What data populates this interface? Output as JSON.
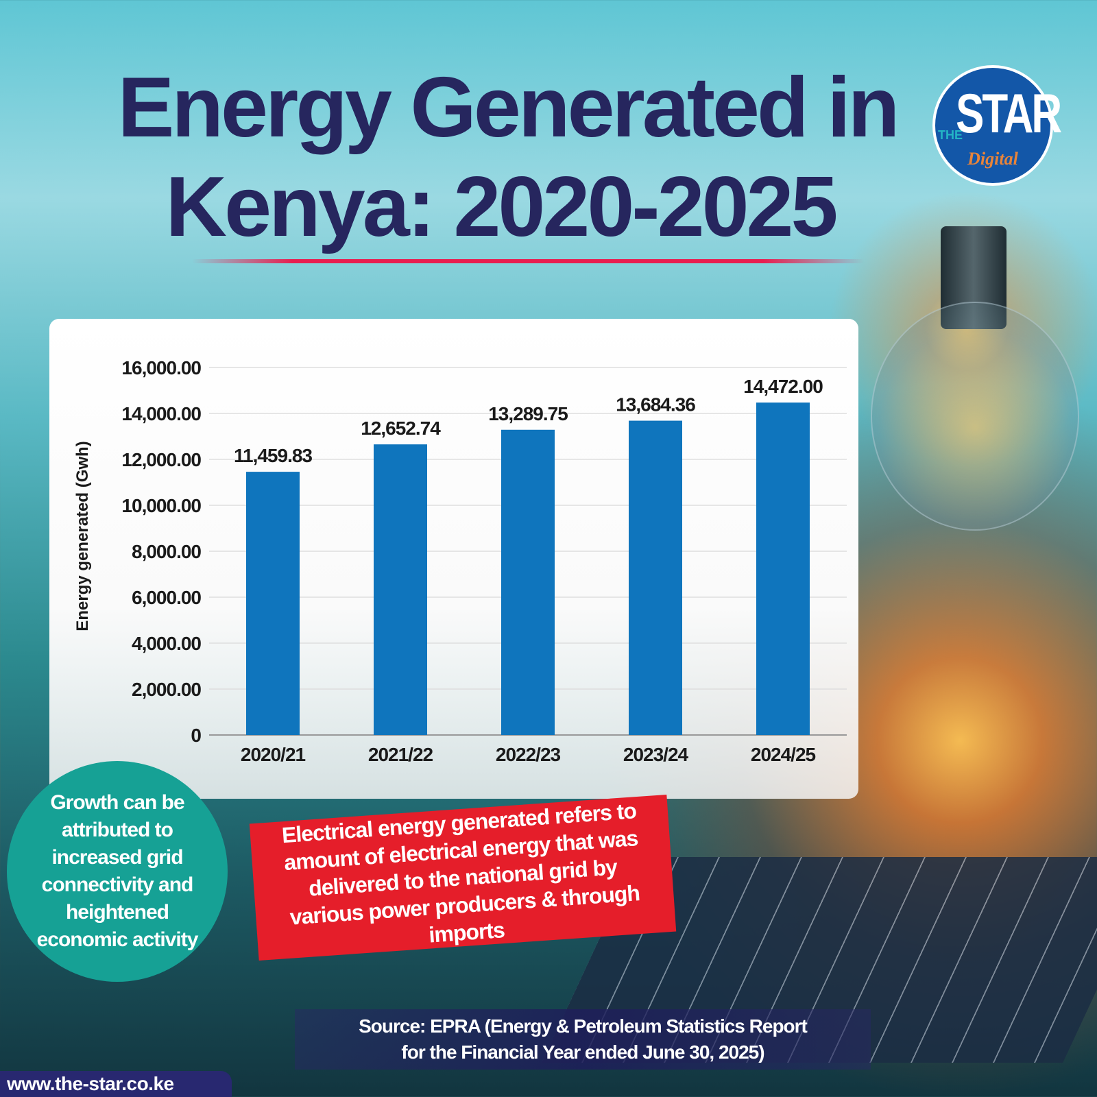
{
  "title_line1": "Energy Generated in",
  "title_line2": "Kenya: 2020-2025",
  "logo": {
    "the": "THE",
    "star": "STAR",
    "digital": "Digital"
  },
  "colors": {
    "bar": "#0f75bd",
    "title": "#26265e",
    "red_box": "#e51e2a",
    "teal_circle": "#16a195"
  },
  "chart_data": {
    "type": "bar",
    "categories": [
      "2020/21",
      "2021/22",
      "2022/23",
      "2023/24",
      "2024/25"
    ],
    "values": [
      11459.83,
      12652.74,
      13289.75,
      13684.36,
      14472.0
    ],
    "data_labels": [
      "11,459.83",
      "12,652.74",
      "13,289.75",
      "13,684.36",
      "14,472.00"
    ],
    "ylabel": "Energy generated (Gwh)",
    "ylim": [
      0,
      16000
    ],
    "yticks": [
      0,
      2000,
      4000,
      6000,
      8000,
      10000,
      12000,
      14000,
      16000
    ],
    "ytick_labels": [
      "0",
      "2,000.00",
      "4,000.00",
      "6,000.00",
      "8,000.00",
      "10,000.00",
      "12,000.00",
      "14,000.00",
      "16,000.00"
    ],
    "grid": true
  },
  "note_circle": "Growth can be attributed to increased grid connectivity and heightened economic activity",
  "definition": "Electrical energy generated refers to amount of electrical energy that was delivered to the national grid by various power producers & through imports",
  "source_line1": "Source: EPRA (Energy & Petroleum Statistics Report",
  "source_line2": "for the Financial Year ended June 30, 2025)",
  "url": "www.the-star.co.ke"
}
